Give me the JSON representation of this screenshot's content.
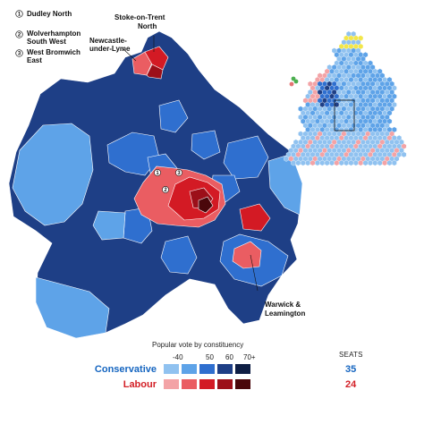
{
  "map_labels": {
    "stoke_on_trent_north": [
      "Stoke-on-Trent",
      "North"
    ],
    "newcastle_under_lyme": [
      "Newcastle-",
      "under-Lyme"
    ],
    "warwick_leamington": [
      "Warwick &",
      "Leamington"
    ]
  },
  "numbered_key": [
    {
      "number": "1",
      "name_lines": [
        "Dudley North"
      ]
    },
    {
      "number": "2",
      "name_lines": [
        "Wolverhampton",
        "South West"
      ]
    },
    {
      "number": "3",
      "name_lines": [
        "West Bromwich",
        "East"
      ]
    }
  ],
  "legend": {
    "title": "Popular vote by constituency",
    "seats_header": "SEATS",
    "ticks": [
      "-40",
      "50",
      "60",
      "70+"
    ],
    "parties": [
      {
        "name": "Conservative",
        "seats": "35",
        "color": "#1565c0",
        "shades": [
          "#90c2f0",
          "#5ea3e8",
          "#2f6fcf",
          "#1e3f86",
          "#0f1f45"
        ]
      },
      {
        "name": "Labour",
        "seats": "24",
        "color": "#d32027",
        "shades": [
          "#f3a3a6",
          "#ea5d62",
          "#d31a24",
          "#9c0f19",
          "#4a070b"
        ]
      }
    ]
  },
  "colors": {
    "con_light": "#90c2f0",
    "con_mid": "#5ea3e8",
    "con_strong": "#2f6fcf",
    "con_dark": "#1e3f86",
    "con_darkest": "#0f1f45",
    "lab_light": "#f3a3a6",
    "lab_mid": "#ea5d62",
    "lab_strong": "#d31a24",
    "lab_dark": "#9c0f19",
    "lab_darkest": "#4a070b"
  }
}
